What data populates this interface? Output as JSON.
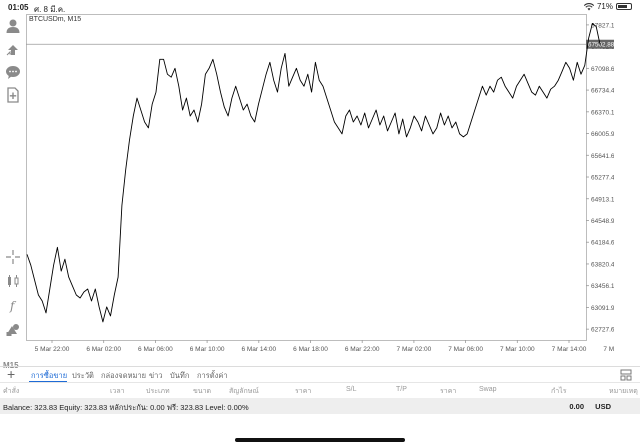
{
  "status": {
    "time": "01:05",
    "date": "ศ. 8 มี.ค.",
    "battery": "71%",
    "battery_level": 0.71
  },
  "toolbar": {
    "icons": [
      "person-icon",
      "trade-icon",
      "chat-icon",
      "add-chart-icon",
      "crosshair-icon",
      "indicators-icon",
      "function-icon",
      "objects-icon"
    ],
    "timeframe": "M15"
  },
  "chart": {
    "symbol_label": "BTCUSDm, M15",
    "current_price_label": "67502.88",
    "line_color": "#000000",
    "price_line_color": "#9a9a9a",
    "price_tag_color": "#666666"
  },
  "chart_data": {
    "type": "line",
    "title": "BTCUSDm, M15",
    "ylim": [
      62545.85,
      68009.62
    ],
    "y_ticks": [
      "67827.15",
      "67462.90",
      "67098.65",
      "66734.40",
      "66370.15",
      "66005.90",
      "65641.65",
      "65277.40",
      "64913.15",
      "64548.90",
      "64184.65",
      "63820.40",
      "63456.15",
      "63091.90",
      "62727.65"
    ],
    "x_ticks": [
      "5 Mar 22:00",
      "6 Mar 02:00",
      "6 Mar 06:00",
      "6 Mar 10:00",
      "6 Mar 14:00",
      "6 Mar 18:00",
      "6 Mar 22:00",
      "7 Mar 02:00",
      "7 Mar 06:00",
      "7 Mar 10:00",
      "7 Mar 14:00",
      "7 Mar 18:00"
    ],
    "last_price": 67502.88,
    "series": [
      {
        "y": [
          63980,
          63800,
          63550,
          63300,
          63200,
          63000,
          63400,
          63800,
          64100,
          63700,
          63900,
          63600,
          63450,
          63300,
          63250,
          63350,
          63400,
          63200,
          63400,
          63100,
          62850,
          63100,
          62950,
          63300,
          63600,
          64800,
          65400,
          65900,
          66300,
          66600,
          66400,
          66200,
          66100,
          66500,
          66700,
          67250,
          67250,
          67000,
          66950,
          67100,
          66800,
          66400,
          66600,
          66300,
          66400,
          66200,
          66500,
          67000,
          67100,
          67250,
          67000,
          66700,
          66450,
          66300,
          66600,
          66800,
          66600,
          66400,
          66500,
          66300,
          66200,
          66500,
          66750,
          67000,
          67200,
          66900,
          66700,
          67100,
          67350,
          66800,
          66950,
          67100,
          66900,
          66800,
          67000,
          66700,
          67200,
          66900,
          66800,
          66600,
          66400,
          66200,
          66100,
          66000,
          66300,
          66400,
          66200,
          66300,
          66150,
          66350,
          66100,
          66250,
          66400,
          66150,
          66300,
          66050,
          66200,
          66350,
          66000,
          66250,
          65950,
          66100,
          66300,
          66200,
          66050,
          66300,
          66150,
          66000,
          66100,
          66350,
          66150,
          66300,
          66100,
          66200,
          66000,
          65950,
          66000,
          66200,
          66400,
          66600,
          66800,
          66650,
          66800,
          66700,
          66900,
          66950,
          66800,
          66700,
          66600,
          66800,
          66900,
          67000,
          66850,
          66700,
          66650,
          66800,
          66700,
          66600,
          66750,
          66800,
          66900,
          67050,
          67200,
          67100,
          66900,
          67200,
          67000,
          67150,
          67600,
          67850,
          67800,
          67500
        ]
      }
    ]
  },
  "bottom": {
    "tabs": [
      "การซื้อขาย",
      "ประวัติ",
      "กล่องจดหมาย",
      "ข่าว",
      "บันทึก",
      "การตั้งค่า"
    ],
    "columns": [
      "คำสั่ง",
      "เวลา",
      "ประเภท",
      "ขนาด",
      "สัญลักษณ์",
      "ราคา",
      "S/L",
      "T/P",
      "ราคา",
      "Swap",
      "กำไร",
      "หมายเหตุ"
    ],
    "balance_text": "Balance: 323.83 Equity: 323.83 หลักประกัน: 0.00 ฟรี: 323.83 Level: 0.00%",
    "profit_value": "0.00",
    "currency": "USD"
  }
}
